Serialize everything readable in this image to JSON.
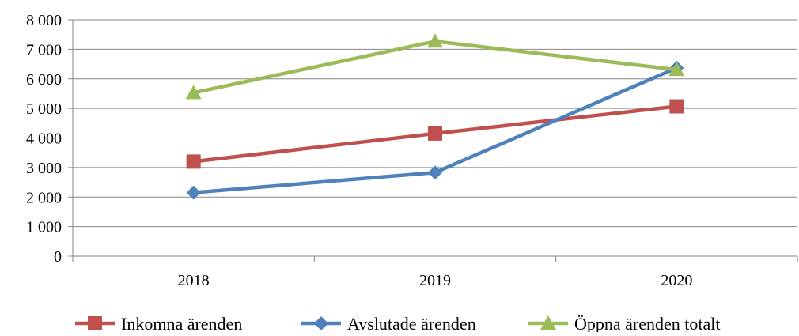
{
  "chart_data": {
    "type": "line",
    "title": "",
    "xlabel": "",
    "ylabel": "",
    "categories": [
      "2018",
      "2019",
      "2020"
    ],
    "ylim": [
      0,
      8000
    ],
    "yticks": [
      0,
      1000,
      2000,
      3000,
      4000,
      5000,
      6000,
      7000,
      8000
    ],
    "ytick_labels": [
      "0",
      "1 000",
      "2 000",
      "3 000",
      "4 000",
      "5 000",
      "6 000",
      "7 000",
      "8 000"
    ],
    "grid": "horizontal",
    "legend_position": "bottom",
    "series": [
      {
        "name": "Inkomna ärenden",
        "values": [
          3200,
          4150,
          5070
        ],
        "color": "#C0504D",
        "marker": "square-marker"
      },
      {
        "name": "Avslutade ärenden",
        "values": [
          2150,
          2830,
          6370
        ],
        "color": "#4F81BD",
        "marker": "diamond-marker"
      },
      {
        "name": "Öppna ärenden totalt",
        "values": [
          5530,
          7270,
          6310
        ],
        "color": "#9BBB59",
        "marker": "triangle-marker"
      }
    ]
  }
}
